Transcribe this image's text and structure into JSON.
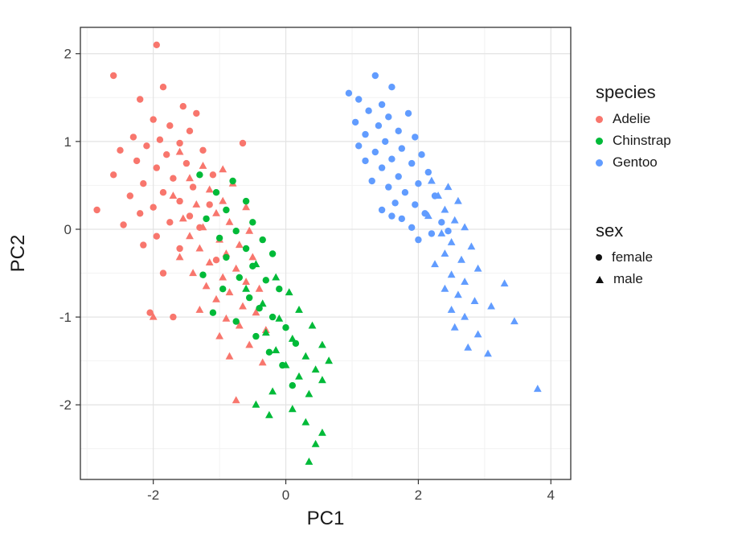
{
  "chart_data": {
    "type": "scatter",
    "title": "",
    "xlabel": "PC1",
    "ylabel": "PC2",
    "xlim": [
      -3.1,
      4.3
    ],
    "ylim": [
      -2.85,
      2.3
    ],
    "x_ticks": [
      -2,
      0,
      2,
      4
    ],
    "y_ticks": [
      -2,
      -1,
      0,
      1,
      2
    ],
    "x_minor_ticks": [
      -3,
      -1,
      1,
      3
    ],
    "y_minor_ticks": [
      -2.5,
      -1.5,
      -0.5,
      0.5,
      1.5
    ],
    "grid": true,
    "legend_position": "right",
    "style": {
      "panel_bg": "#FFFFFF",
      "grid_major": "#E3E3E3",
      "grid_minor": "#F2F2F2",
      "panel_border": "#333333",
      "tick_color": "#333333",
      "point_radius": 4.2
    },
    "color_legend": {
      "title": "species",
      "items": [
        {
          "label": "Adelie",
          "color": "#F8766D"
        },
        {
          "label": "Chinstrap",
          "color": "#00BA38"
        },
        {
          "label": "Gentoo",
          "color": "#619CFF"
        }
      ]
    },
    "shape_legend": {
      "title": "sex",
      "items": [
        {
          "label": "female",
          "shape": "circle"
        },
        {
          "label": "male",
          "shape": "triangle"
        }
      ]
    },
    "series": [
      {
        "name": "Adelie female",
        "species": "Adelie",
        "sex": "female",
        "color": "#F8766D",
        "shape": "circle",
        "points": [
          [
            -1.95,
            2.1
          ],
          [
            -2.6,
            1.75
          ],
          [
            -1.85,
            1.62
          ],
          [
            -2.2,
            1.48
          ],
          [
            -1.55,
            1.4
          ],
          [
            -1.35,
            1.32
          ],
          [
            -2.0,
            1.25
          ],
          [
            -1.75,
            1.18
          ],
          [
            -1.45,
            1.12
          ],
          [
            -2.3,
            1.05
          ],
          [
            -1.9,
            1.02
          ],
          [
            -1.6,
            0.98
          ],
          [
            -2.1,
            0.95
          ],
          [
            -2.5,
            0.9
          ],
          [
            -1.25,
            0.9
          ],
          [
            -0.65,
            0.98
          ],
          [
            -1.8,
            0.85
          ],
          [
            -2.25,
            0.78
          ],
          [
            -1.5,
            0.75
          ],
          [
            -1.95,
            0.7
          ],
          [
            -2.6,
            0.62
          ],
          [
            -1.1,
            0.62
          ],
          [
            -1.7,
            0.58
          ],
          [
            -2.15,
            0.52
          ],
          [
            -1.4,
            0.48
          ],
          [
            -1.85,
            0.42
          ],
          [
            -2.35,
            0.38
          ],
          [
            -1.6,
            0.32
          ],
          [
            -1.15,
            0.28
          ],
          [
            -2.0,
            0.25
          ],
          [
            -2.2,
            0.18
          ],
          [
            -2.85,
            0.22
          ],
          [
            -1.45,
            0.15
          ],
          [
            -1.75,
            0.08
          ],
          [
            -2.45,
            0.05
          ],
          [
            -1.3,
            0.02
          ],
          [
            -1.95,
            -0.08
          ],
          [
            -2.15,
            -0.18
          ],
          [
            -1.6,
            -0.22
          ],
          [
            -1.05,
            -0.35
          ],
          [
            -1.85,
            -0.5
          ],
          [
            -2.05,
            -0.95
          ],
          [
            -1.7,
            -1.0
          ]
        ]
      },
      {
        "name": "Adelie male",
        "species": "Adelie",
        "sex": "male",
        "color": "#F8766D",
        "shape": "triangle",
        "points": [
          [
            -1.6,
            0.88
          ],
          [
            -1.25,
            0.72
          ],
          [
            -0.95,
            0.68
          ],
          [
            -1.45,
            0.58
          ],
          [
            -0.8,
            0.52
          ],
          [
            -1.15,
            0.45
          ],
          [
            -1.7,
            0.38
          ],
          [
            -0.95,
            0.32
          ],
          [
            -1.35,
            0.28
          ],
          [
            -0.6,
            0.25
          ],
          [
            -1.05,
            0.18
          ],
          [
            -1.55,
            0.12
          ],
          [
            -0.85,
            0.08
          ],
          [
            -1.25,
            0.02
          ],
          [
            -0.55,
            -0.02
          ],
          [
            -1.45,
            -0.08
          ],
          [
            -1.0,
            -0.12
          ],
          [
            -0.7,
            -0.18
          ],
          [
            -1.3,
            -0.22
          ],
          [
            -0.9,
            -0.28
          ],
          [
            -1.6,
            -0.32
          ],
          [
            -0.5,
            -0.32
          ],
          [
            -1.15,
            -0.38
          ],
          [
            -0.75,
            -0.45
          ],
          [
            -1.4,
            -0.5
          ],
          [
            -0.95,
            -0.55
          ],
          [
            -0.6,
            -0.6
          ],
          [
            -1.2,
            -0.65
          ],
          [
            -0.4,
            -0.68
          ],
          [
            -0.85,
            -0.72
          ],
          [
            -1.05,
            -0.8
          ],
          [
            -0.65,
            -0.88
          ],
          [
            -1.3,
            -0.92
          ],
          [
            -0.45,
            -0.95
          ],
          [
            -0.9,
            -1.02
          ],
          [
            -2.0,
            -1.0
          ],
          [
            -0.7,
            -1.1
          ],
          [
            -0.3,
            -1.15
          ],
          [
            -1.0,
            -1.22
          ],
          [
            -0.55,
            -1.32
          ],
          [
            -0.85,
            -1.45
          ],
          [
            -0.35,
            -1.52
          ],
          [
            -0.75,
            -1.95
          ]
        ]
      },
      {
        "name": "Chinstrap female",
        "species": "Chinstrap",
        "sex": "female",
        "color": "#00BA38",
        "shape": "circle",
        "points": [
          [
            -1.3,
            0.62
          ],
          [
            -0.8,
            0.55
          ],
          [
            -1.05,
            0.42
          ],
          [
            -0.6,
            0.32
          ],
          [
            -0.9,
            0.22
          ],
          [
            -1.2,
            0.12
          ],
          [
            -0.5,
            0.08
          ],
          [
            -0.75,
            -0.02
          ],
          [
            -1.0,
            -0.1
          ],
          [
            -0.35,
            -0.12
          ],
          [
            -0.6,
            -0.22
          ],
          [
            -0.9,
            -0.32
          ],
          [
            -0.2,
            -0.28
          ],
          [
            -0.5,
            -0.42
          ],
          [
            -1.25,
            -0.52
          ],
          [
            -0.7,
            -0.55
          ],
          [
            -0.3,
            -0.58
          ],
          [
            -0.95,
            -0.68
          ],
          [
            -0.1,
            -0.68
          ],
          [
            -0.55,
            -0.78
          ],
          [
            -0.4,
            -0.9
          ],
          [
            -1.1,
            -0.95
          ],
          [
            -0.2,
            -1.0
          ],
          [
            -0.75,
            -1.05
          ],
          [
            0.0,
            -1.12
          ],
          [
            -0.45,
            -1.22
          ],
          [
            0.15,
            -1.3
          ],
          [
            -0.25,
            -1.4
          ],
          [
            -0.05,
            -1.55
          ],
          [
            0.1,
            -1.78
          ]
        ]
      },
      {
        "name": "Chinstrap male",
        "species": "Chinstrap",
        "sex": "male",
        "color": "#00BA38",
        "shape": "triangle",
        "points": [
          [
            -0.45,
            -0.4
          ],
          [
            -0.15,
            -0.55
          ],
          [
            -0.6,
            -0.68
          ],
          [
            0.05,
            -0.72
          ],
          [
            -0.35,
            -0.85
          ],
          [
            0.2,
            -0.92
          ],
          [
            -0.1,
            -1.02
          ],
          [
            0.4,
            -1.1
          ],
          [
            -0.3,
            -1.18
          ],
          [
            0.1,
            -1.25
          ],
          [
            0.55,
            -1.32
          ],
          [
            -0.15,
            -1.38
          ],
          [
            0.3,
            -1.45
          ],
          [
            0.65,
            -1.5
          ],
          [
            0.0,
            -1.55
          ],
          [
            0.45,
            -1.6
          ],
          [
            0.2,
            -1.68
          ],
          [
            0.55,
            -1.72
          ],
          [
            -0.2,
            -1.85
          ],
          [
            0.35,
            -1.88
          ],
          [
            -0.45,
            -2.0
          ],
          [
            0.1,
            -2.05
          ],
          [
            -0.25,
            -2.12
          ],
          [
            0.3,
            -2.2
          ],
          [
            0.55,
            -2.32
          ],
          [
            0.45,
            -2.45
          ],
          [
            0.35,
            -2.65
          ]
        ]
      },
      {
        "name": "Gentoo female",
        "species": "Gentoo",
        "sex": "female",
        "color": "#619CFF",
        "shape": "circle",
        "points": [
          [
            0.95,
            1.55
          ],
          [
            1.35,
            1.75
          ],
          [
            1.6,
            1.62
          ],
          [
            1.1,
            1.48
          ],
          [
            1.45,
            1.42
          ],
          [
            1.25,
            1.35
          ],
          [
            1.85,
            1.32
          ],
          [
            1.55,
            1.28
          ],
          [
            1.05,
            1.22
          ],
          [
            1.4,
            1.18
          ],
          [
            1.7,
            1.12
          ],
          [
            1.2,
            1.08
          ],
          [
            1.95,
            1.05
          ],
          [
            1.5,
            1.0
          ],
          [
            1.1,
            0.95
          ],
          [
            1.75,
            0.92
          ],
          [
            1.35,
            0.88
          ],
          [
            2.05,
            0.85
          ],
          [
            1.6,
            0.8
          ],
          [
            1.2,
            0.78
          ],
          [
            1.9,
            0.75
          ],
          [
            1.45,
            0.7
          ],
          [
            2.15,
            0.65
          ],
          [
            1.7,
            0.6
          ],
          [
            1.3,
            0.55
          ],
          [
            2.0,
            0.52
          ],
          [
            1.55,
            0.48
          ],
          [
            1.8,
            0.42
          ],
          [
            2.25,
            0.38
          ],
          [
            1.65,
            0.3
          ],
          [
            1.95,
            0.28
          ],
          [
            1.45,
            0.22
          ],
          [
            2.1,
            0.18
          ],
          [
            1.75,
            0.12
          ],
          [
            2.35,
            0.08
          ],
          [
            1.9,
            0.02
          ],
          [
            2.2,
            -0.05
          ],
          [
            2.0,
            -0.12
          ],
          [
            1.6,
            0.15
          ],
          [
            2.45,
            -0.02
          ]
        ]
      },
      {
        "name": "Gentoo male",
        "species": "Gentoo",
        "sex": "male",
        "color": "#619CFF",
        "shape": "triangle",
        "points": [
          [
            2.2,
            0.55
          ],
          [
            2.45,
            0.48
          ],
          [
            2.3,
            0.38
          ],
          [
            2.6,
            0.32
          ],
          [
            2.4,
            0.22
          ],
          [
            2.15,
            0.15
          ],
          [
            2.55,
            0.1
          ],
          [
            2.7,
            0.02
          ],
          [
            2.35,
            -0.05
          ],
          [
            2.5,
            -0.15
          ],
          [
            2.8,
            -0.2
          ],
          [
            2.4,
            -0.28
          ],
          [
            2.65,
            -0.35
          ],
          [
            2.25,
            -0.4
          ],
          [
            2.9,
            -0.45
          ],
          [
            2.5,
            -0.52
          ],
          [
            2.7,
            -0.6
          ],
          [
            3.3,
            -0.62
          ],
          [
            2.4,
            -0.68
          ],
          [
            2.6,
            -0.75
          ],
          [
            2.85,
            -0.82
          ],
          [
            3.1,
            -0.88
          ],
          [
            2.5,
            -0.92
          ],
          [
            2.7,
            -1.0
          ],
          [
            3.45,
            -1.05
          ],
          [
            2.55,
            -1.12
          ],
          [
            2.9,
            -1.2
          ],
          [
            2.75,
            -1.35
          ],
          [
            3.05,
            -1.42
          ],
          [
            3.8,
            -1.82
          ]
        ]
      }
    ]
  }
}
